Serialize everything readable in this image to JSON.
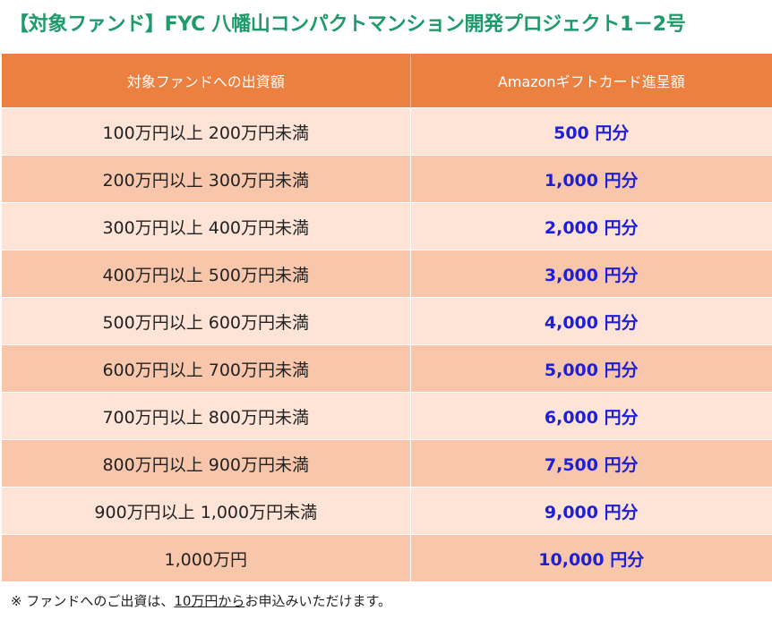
{
  "title": "【対象ファンド】FYC 八幡山コンパクトマンション開発プロジェクト1－2号",
  "table": {
    "headers": [
      "対象ファンドへの出資額",
      "Amazonギフトカード進呈額"
    ],
    "rows": [
      {
        "range": "100万円以上 200万円未満",
        "amount": "500 円分"
      },
      {
        "range": "200万円以上 300万円未満",
        "amount": "1,000 円分"
      },
      {
        "range": "300万円以上 400万円未満",
        "amount": "2,000 円分"
      },
      {
        "range": "400万円以上 500万円未満",
        "amount": "3,000 円分"
      },
      {
        "range": "500万円以上 600万円未満",
        "amount": "4,000 円分"
      },
      {
        "range": "600万円以上 700万円未満",
        "amount": "5,000 円分"
      },
      {
        "range": "700万円以上 800万円未満",
        "amount": "6,000 円分"
      },
      {
        "range": "800万円以上 900万円未満",
        "amount": "7,500 円分"
      },
      {
        "range": "900万円以上 1,000万円未満",
        "amount": "9,000 円分"
      },
      {
        "range": "1,000万円",
        "amount": "10,000 円分"
      }
    ]
  },
  "footnote": {
    "prefix": "※ ファンドへのご出資は、",
    "emphasis": "10万円から",
    "suffix": "お申込みいただけます。"
  },
  "colors": {
    "title": "#1f9a6a",
    "header_bg": "#ec8040",
    "row_light": "#fde4d7",
    "row_dark": "#f8c7ab",
    "amount_text": "#1f1fd6"
  }
}
